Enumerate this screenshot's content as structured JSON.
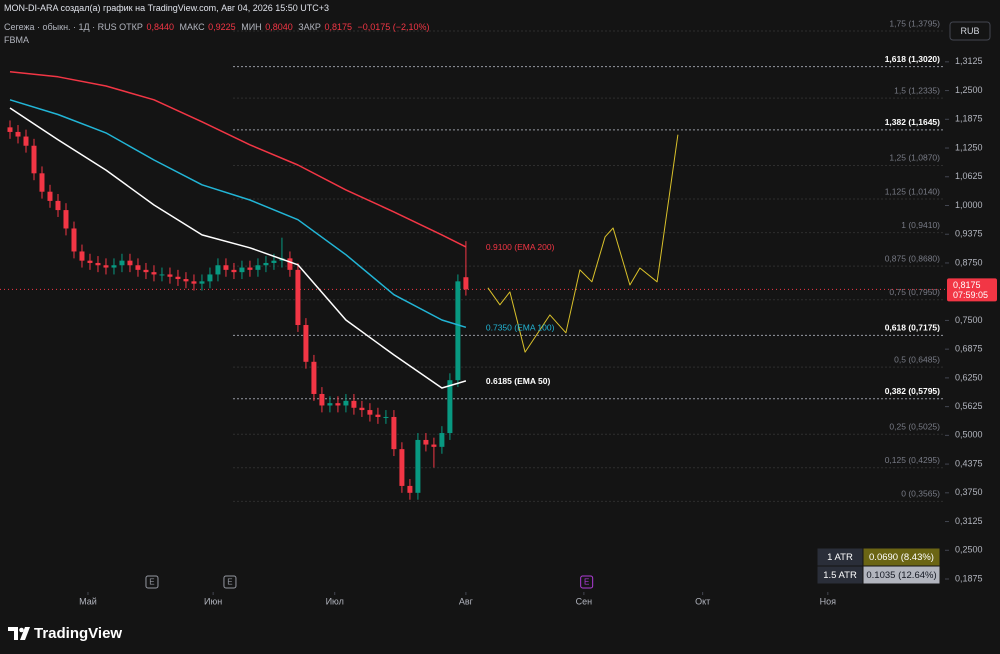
{
  "header": {
    "creator_line": "MON-DI-ARA создал(а) график на TradingView.com, Авг 04, 2026 15:50 UTC+3",
    "symbol": "Сегежа · обыкн. · 1Д · RUS",
    "ohlc": [
      {
        "name": "ОТКР",
        "value": "0,8440"
      },
      {
        "name": "МАКС",
        "value": "0,9225"
      },
      {
        "name": "МИН",
        "value": "0,8040"
      },
      {
        "name": "ЗАКР",
        "value": "0,8175"
      }
    ],
    "change": "−0,0175 (−2,10%)",
    "indicator": "FBMA",
    "currency": "RUB"
  },
  "price_tag": {
    "price": "0,8175",
    "countdown": "07:59:05"
  },
  "chart_data": {
    "type": "candlestick",
    "up_color": "#089981",
    "down_color": "#f23645",
    "x": [
      0,
      1,
      2,
      3,
      4,
      5,
      6,
      7,
      8,
      9,
      10,
      11,
      12,
      13,
      14,
      15,
      16,
      17,
      18,
      19,
      20,
      21,
      22,
      23,
      24,
      25,
      26,
      27,
      28,
      29,
      30,
      31,
      32,
      33,
      34,
      35,
      36,
      37,
      38,
      39,
      40,
      41,
      42,
      43,
      44,
      45,
      46,
      47,
      48,
      49,
      50,
      51,
      52,
      53,
      54,
      55,
      56,
      57
    ],
    "open": [
      1.17,
      1.16,
      1.15,
      1.13,
      1.07,
      1.03,
      1.01,
      0.99,
      0.95,
      0.9,
      0.88,
      0.875,
      0.87,
      0.865,
      0.87,
      0.88,
      0.87,
      0.86,
      0.855,
      0.85,
      0.85,
      0.845,
      0.84,
      0.835,
      0.83,
      0.835,
      0.85,
      0.87,
      0.86,
      0.855,
      0.865,
      0.86,
      0.87,
      0.875,
      0.88,
      0.885,
      0.86,
      0.74,
      0.66,
      0.59,
      0.565,
      0.57,
      0.565,
      0.575,
      0.56,
      0.555,
      0.545,
      0.54,
      0.54,
      0.47,
      0.39,
      0.375,
      0.49,
      0.48,
      0.475,
      0.505,
      0.62,
      0.844
    ],
    "high": [
      1.185,
      1.175,
      1.165,
      1.145,
      1.085,
      1.045,
      1.025,
      1.005,
      0.965,
      0.915,
      0.895,
      0.89,
      0.885,
      0.885,
      0.895,
      0.895,
      0.885,
      0.875,
      0.87,
      0.865,
      0.865,
      0.86,
      0.855,
      0.85,
      0.85,
      0.865,
      0.885,
      0.885,
      0.875,
      0.88,
      0.88,
      0.885,
      0.89,
      0.895,
      0.93,
      0.9,
      0.875,
      0.755,
      0.675,
      0.605,
      0.585,
      0.585,
      0.59,
      0.59,
      0.575,
      0.57,
      0.56,
      0.555,
      0.555,
      0.485,
      0.405,
      0.505,
      0.505,
      0.495,
      0.52,
      0.635,
      0.85,
      0.9225
    ],
    "low": [
      1.145,
      1.135,
      1.115,
      1.055,
      1.015,
      0.995,
      0.975,
      0.935,
      0.885,
      0.865,
      0.86,
      0.855,
      0.85,
      0.85,
      0.855,
      0.855,
      0.845,
      0.84,
      0.835,
      0.835,
      0.83,
      0.825,
      0.82,
      0.815,
      0.815,
      0.82,
      0.835,
      0.845,
      0.84,
      0.84,
      0.845,
      0.845,
      0.855,
      0.86,
      0.865,
      0.845,
      0.725,
      0.645,
      0.575,
      0.55,
      0.55,
      0.55,
      0.55,
      0.545,
      0.54,
      0.53,
      0.525,
      0.525,
      0.455,
      0.375,
      0.36,
      0.36,
      0.465,
      0.43,
      0.46,
      0.49,
      0.605,
      0.804
    ],
    "close": [
      1.16,
      1.15,
      1.13,
      1.07,
      1.03,
      1.01,
      0.99,
      0.95,
      0.9,
      0.88,
      0.875,
      0.87,
      0.865,
      0.87,
      0.88,
      0.87,
      0.86,
      0.855,
      0.85,
      0.85,
      0.845,
      0.84,
      0.835,
      0.83,
      0.835,
      0.85,
      0.87,
      0.86,
      0.855,
      0.865,
      0.86,
      0.87,
      0.875,
      0.88,
      0.885,
      0.86,
      0.74,
      0.66,
      0.59,
      0.565,
      0.57,
      0.565,
      0.575,
      0.56,
      0.555,
      0.545,
      0.54,
      0.54,
      0.47,
      0.39,
      0.375,
      0.49,
      0.48,
      0.475,
      0.505,
      0.62,
      0.835,
      0.8175
    ],
    "series": [
      {
        "color": "#f23645",
        "x": [
          0,
          6,
          12,
          18,
          24,
          30,
          36,
          42,
          48,
          54,
          57
        ],
        "values": [
          1.291,
          1.28,
          1.26,
          1.23,
          1.182,
          1.132,
          1.088,
          1.034,
          0.986,
          0.936,
          0.91
        ]
      },
      {
        "color": "#22b5d6",
        "x": [
          0,
          6,
          12,
          18,
          24,
          30,
          36,
          42,
          48,
          54,
          57
        ],
        "values": [
          1.23,
          1.198,
          1.158,
          1.099,
          1.045,
          1.012,
          0.969,
          0.893,
          0.806,
          0.751,
          0.735
        ]
      },
      {
        "color": "#ffffff",
        "x": [
          0,
          6,
          12,
          18,
          24,
          30,
          36,
          42,
          48,
          54,
          57
        ],
        "values": [
          1.212,
          1.143,
          1.077,
          1.001,
          0.936,
          0.908,
          0.871,
          0.751,
          0.675,
          0.603,
          0.6185
        ]
      },
      {
        "color": "#d9c12a",
        "x": [
          59.75,
          61.25,
          62.5,
          64.4,
          67.5,
          69.5,
          71.25,
          72.75,
          74.4,
          75.4,
          77.5,
          78.75,
          80.9,
          83.5
        ],
        "values": [
          0.821,
          0.784,
          0.812,
          0.681,
          0.762,
          0.723,
          0.86,
          0.834,
          0.932,
          0.951,
          0.827,
          0.864,
          0.834,
          1.154
        ]
      }
    ],
    "annotations": [
      {
        "text": "0.9100 (EMA 200)",
        "color": "#f23645"
      },
      {
        "text": "0.7350 (EMA 100)",
        "color": "#22b5d6"
      },
      {
        "text": "0.6185 (EMA 50)",
        "color": "#ffffff"
      }
    ],
    "fib_levels": [
      {
        "label": "1,75 (1,3795)",
        "value": 1.3795,
        "emphasis": false
      },
      {
        "label": "1,618 (1,3020)",
        "value": 1.302,
        "emphasis": true
      },
      {
        "label": "1,5 (1,2335)",
        "value": 1.2335,
        "emphasis": false
      },
      {
        "label": "1,382 (1,1645)",
        "value": 1.1645,
        "emphasis": true
      },
      {
        "label": "1,25 (1,0870)",
        "value": 1.087,
        "emphasis": false
      },
      {
        "label": "1,125 (1,0140)",
        "value": 1.014,
        "emphasis": false
      },
      {
        "label": "1 (0,9410)",
        "value": 0.941,
        "emphasis": false
      },
      {
        "label": "0,875 (0,8680)",
        "value": 0.868,
        "emphasis": false
      },
      {
        "label": "0,75 (0,7950)",
        "value": 0.795,
        "emphasis": false
      },
      {
        "label": "0,618 (0,7175)",
        "value": 0.7175,
        "emphasis": true
      },
      {
        "label": "0,5 (0,6485)",
        "value": 0.6485,
        "emphasis": false
      },
      {
        "label": "0,382 (0,5795)",
        "value": 0.5795,
        "emphasis": true
      },
      {
        "label": "0,25 (0,5025)",
        "value": 0.5025,
        "emphasis": false
      },
      {
        "label": "0,125 (0,4295)",
        "value": 0.4295,
        "emphasis": false
      },
      {
        "label": "0 (0,3565)",
        "value": 0.3565,
        "emphasis": false
      }
    ],
    "events": [
      {
        "x": 17.75,
        "label": "E",
        "color": "#9598a1"
      },
      {
        "x": 27.5,
        "label": "E",
        "color": "#9598a1"
      },
      {
        "x": 72.1,
        "label": "E",
        "color": "#b03cd8"
      }
    ],
    "last_price_line": true,
    "xlim": [
      -1.25,
      116.9
    ],
    "xticks": [
      {
        "value": 9.75,
        "label": "Май"
      },
      {
        "value": 25.4,
        "label": "Июн"
      },
      {
        "value": 40.6,
        "label": "Июл"
      },
      {
        "value": 57,
        "label": "Авг"
      },
      {
        "value": 71.75,
        "label": "Сен"
      },
      {
        "value": 86.6,
        "label": "Окт"
      },
      {
        "value": 102.25,
        "label": "Ноя"
      }
    ],
    "ylim": [
      0.1636,
      1.447
    ],
    "yticks": [
      {
        "value": 0.1875,
        "label": "0,1875"
      },
      {
        "value": 0.25,
        "label": "0,2500"
      },
      {
        "value": 0.3125,
        "label": "0,3125"
      },
      {
        "value": 0.375,
        "label": "0,3750"
      },
      {
        "value": 0.4375,
        "label": "0,4375"
      },
      {
        "value": 0.5,
        "label": "0,5000"
      },
      {
        "value": 0.5625,
        "label": "0,5625"
      },
      {
        "value": 0.625,
        "label": "0,6250"
      },
      {
        "value": 0.6875,
        "label": "0,6875"
      },
      {
        "value": 0.75,
        "label": "0,7500"
      },
      {
        "value": 0.875,
        "label": "0,8750"
      },
      {
        "value": 0.9375,
        "label": "0,9375"
      },
      {
        "value": 1.0,
        "label": "1,0000"
      },
      {
        "value": 1.0625,
        "label": "1,0625"
      },
      {
        "value": 1.125,
        "label": "1,1250"
      },
      {
        "value": 1.1875,
        "label": "1,1875"
      },
      {
        "value": 1.25,
        "label": "1,2500"
      },
      {
        "value": 1.3125,
        "label": "1,3125"
      }
    ]
  },
  "atr_table": {
    "rows": [
      [
        "1 ATR",
        "0.0690 (8.43%)"
      ],
      [
        "1.5 ATR",
        "0.1035 (12.64%)"
      ]
    ]
  },
  "footer": {
    "brand": "TradingView"
  }
}
